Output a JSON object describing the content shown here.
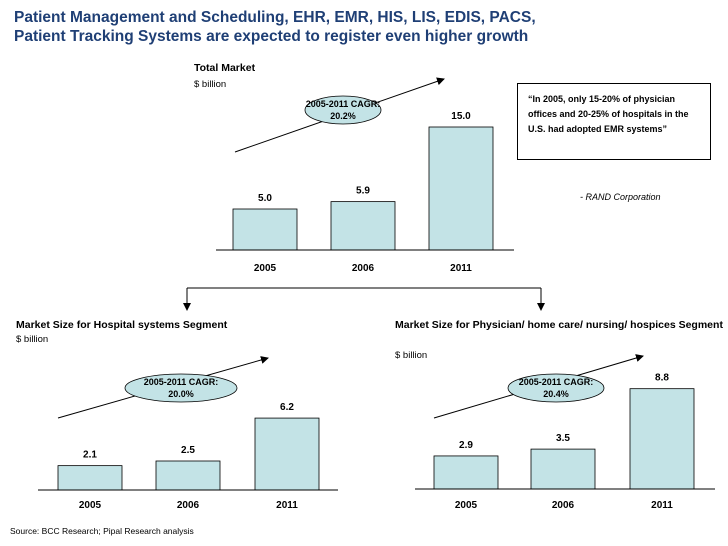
{
  "title_line1": "Patient Management and Scheduling, EHR, EMR, HIS, LIS, EDIS, PACS,",
  "title_line2": "Patient Tracking Systems are expected to register even higher growth",
  "quote": {
    "text": "“In 2005, only 15-20% of physician offices and 20-25% of hospitals in the U.S. had adopted EMR systems”",
    "source": "- RAND Corporation"
  },
  "source_note": "Source: BCC Research; Pipal Research analysis",
  "chart_data": [
    {
      "type": "bar",
      "title": "Total Market",
      "unit": "$ billion",
      "categories": [
        "2005",
        "2006",
        "2011"
      ],
      "values": [
        5.0,
        5.9,
        15.0
      ],
      "value_labels": [
        "5.0",
        "5.9",
        "15.0"
      ],
      "cagr_label_1": "2005-2011 CAGR:",
      "cagr_label_2": "20.2%",
      "bar_color": "#c3e3e6"
    },
    {
      "type": "bar",
      "title": "Market Size for Hospital systems Segment",
      "unit": "$ billion",
      "categories": [
        "2005",
        "2006",
        "2011"
      ],
      "values": [
        2.1,
        2.5,
        6.2
      ],
      "value_labels": [
        "2.1",
        "2.5",
        "6.2"
      ],
      "cagr_label_1": "2005-2011 CAGR:",
      "cagr_label_2": "20.0%",
      "bar_color": "#c3e3e6"
    },
    {
      "type": "bar",
      "title": "Market Size for Physician/ home care/ nursing/ hospices Segment",
      "unit": "$ billion",
      "categories": [
        "2005",
        "2006",
        "2011"
      ],
      "values": [
        2.9,
        3.5,
        8.8
      ],
      "value_labels": [
        "2.9",
        "3.5",
        "8.8"
      ],
      "cagr_label_1": "2005-2011 CAGR:",
      "cagr_label_2": "20.4%",
      "bar_color": "#c3e3e6"
    }
  ]
}
